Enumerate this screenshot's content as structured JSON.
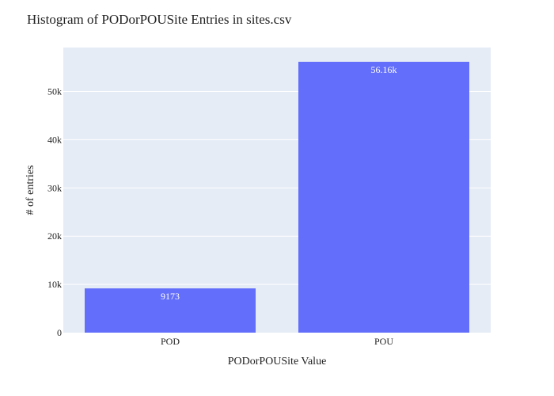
{
  "chart_data": {
    "type": "bar",
    "title": "Histogram of PODorPOUSite Entries in sites.csv",
    "xlabel": "PODorPOUSite Value",
    "ylabel": "# of entries",
    "categories": [
      "POD",
      "POU"
    ],
    "values": [
      9173,
      56160
    ],
    "value_labels": [
      "9173",
      "56.16k"
    ],
    "ylim": [
      0,
      59116
    ],
    "yticks": [
      0,
      10000,
      20000,
      30000,
      40000,
      50000
    ],
    "ytick_labels": [
      "0",
      "10k",
      "20k",
      "30k",
      "40k",
      "50k"
    ],
    "grid": true,
    "legend": "none",
    "colors": {
      "bar": "#636efa",
      "plot_bg": "#e5ecf6",
      "grid": "#ffffff"
    }
  }
}
